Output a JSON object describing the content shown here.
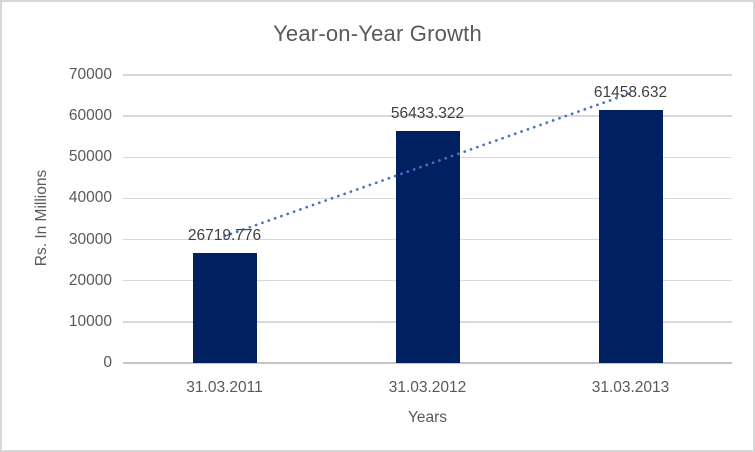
{
  "chart_data": {
    "type": "bar",
    "subtype": "column",
    "title": "Year-on-Year Growth",
    "xlabel": "Years",
    "ylabel": "Rs. In Millions",
    "categories": [
      "31.03.2011",
      "31.03.2012",
      "31.03.2013"
    ],
    "values": [
      26719.776,
      56433.322,
      61458.632
    ],
    "data_labels": [
      "26719.776",
      "56433.322",
      "61458.632"
    ],
    "ylim": [
      0,
      70000
    ],
    "ytick_step": 10000,
    "ytick_labels": [
      "0",
      "10000",
      "20000",
      "30000",
      "40000",
      "50000",
      "60000",
      "70000"
    ],
    "grid": true,
    "legend": "none",
    "trendline": {
      "type": "linear",
      "style": "dotted"
    },
    "colors": {
      "bar": "#002060",
      "trendline": "#4472c4",
      "gridline": "#d9d9d9",
      "axis_line": "#c6c6c6",
      "border": "#d7d7d7",
      "background": "#ffffff",
      "title_text": "#595959",
      "axis_text": "#595959",
      "data_label_text": "#404040"
    }
  }
}
